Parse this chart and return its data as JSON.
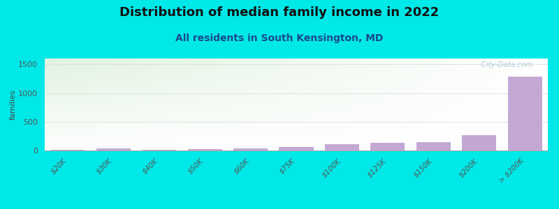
{
  "title": "Distribution of median family income in 2022",
  "subtitle": "All residents in South Kensington, MD",
  "ylabel": "families",
  "categories": [
    "$20K",
    "$30K",
    "$40K",
    "$50K",
    "$60K",
    "$75K",
    "$100K",
    "$125K",
    "$150K",
    "$200K",
    "> $200K"
  ],
  "values": [
    15,
    40,
    10,
    30,
    35,
    55,
    105,
    135,
    140,
    265,
    1290
  ],
  "bar_color": "#c4a8d4",
  "background_color": "#00e8e8",
  "ylim": [
    0,
    1600
  ],
  "yticks": [
    0,
    500,
    1000,
    1500
  ],
  "title_fontsize": 13,
  "subtitle_fontsize": 10,
  "ylabel_fontsize": 8,
  "watermark": "  City-Data.com"
}
